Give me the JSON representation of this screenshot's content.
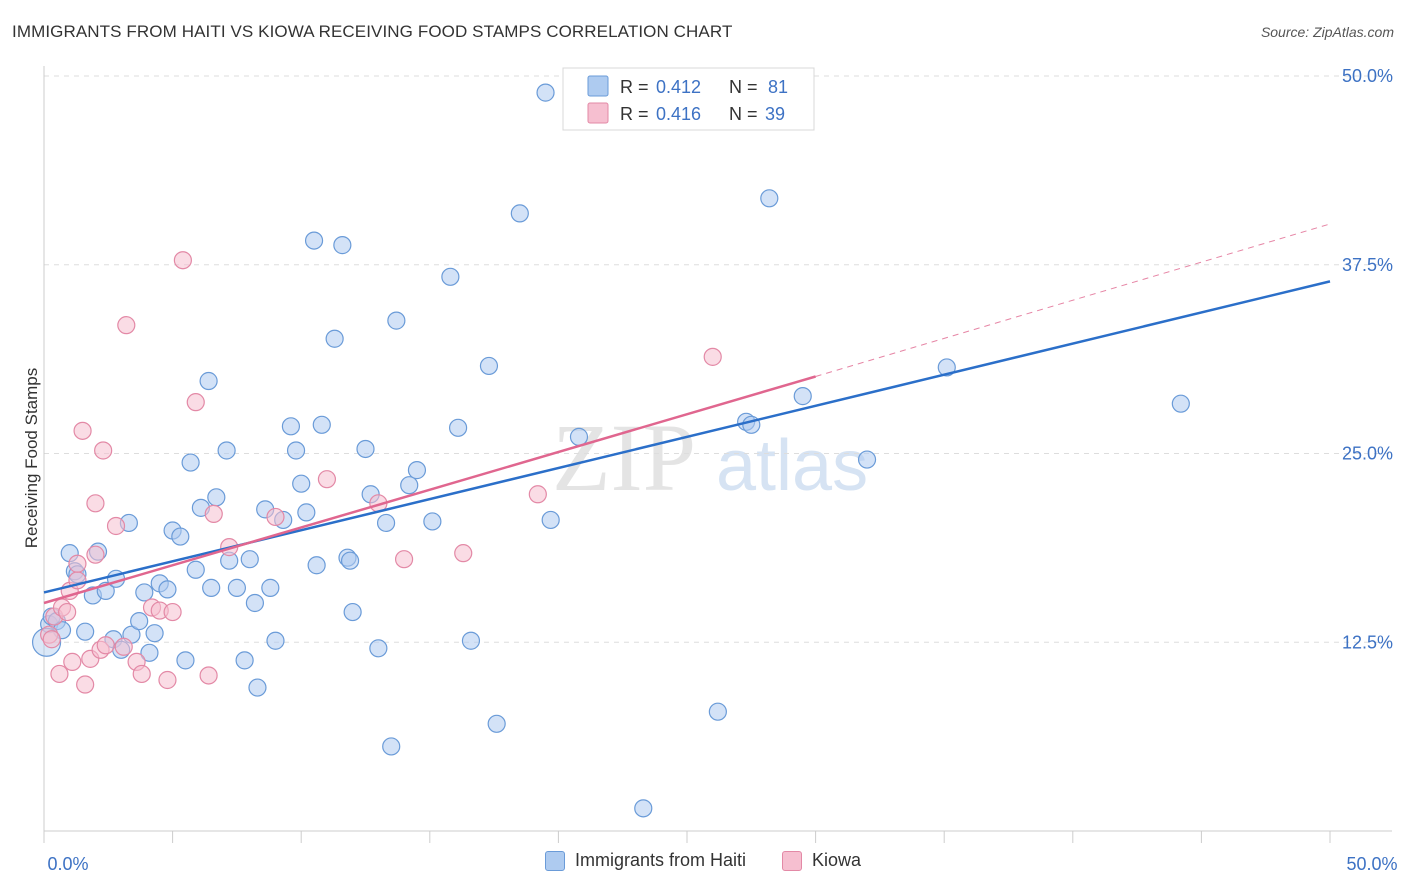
{
  "header": {
    "title": "IMMIGRANTS FROM HAITI VS KIOWA RECEIVING FOOD STAMPS CORRELATION CHART",
    "source": "Source: ZipAtlas.com"
  },
  "colors": {
    "haiti_fill": "#aecbf0",
    "haiti_stroke": "#6a9bd8",
    "haiti_line": "#2b6fc9",
    "kiowa_fill": "#f6bfd0",
    "kiowa_stroke": "#e389a6",
    "kiowa_line": "#e0668f",
    "axis_label_color": "#3d72c4",
    "grid": "#dddddd"
  },
  "stats_legend": [
    {
      "r_label": "R =",
      "r_value": "0.412",
      "n_label": "N =",
      "n_value": "81"
    },
    {
      "r_label": "R =",
      "r_value": "0.416",
      "n_label": "N =",
      "n_value": "39"
    }
  ],
  "bottom_legend": [
    "Immigrants from Haiti",
    "Kiowa"
  ],
  "watermark": {
    "zip": "ZIP",
    "atlas": "atlas"
  },
  "chart_data": {
    "type": "scatter",
    "title": "IMMIGRANTS FROM HAITI VS KIOWA RECEIVING FOOD STAMPS CORRELATION CHART",
    "xlabel": "",
    "ylabel": "Receiving Food Stamps",
    "xlim": [
      0,
      50
    ],
    "ylim": [
      0,
      50
    ],
    "x_tick_labels": [
      "0.0%",
      "50.0%"
    ],
    "y_ticks": [
      12.5,
      25.0,
      37.5,
      50.0
    ],
    "y_tick_labels": [
      "12.5%",
      "25.0%",
      "37.5%",
      "50.0%"
    ],
    "grid": "horizontal dashed",
    "legend_position": "top-center",
    "series": [
      {
        "name": "Immigrants from Haiti",
        "r": 0.412,
        "n": 81,
        "trend": {
          "x0": 0,
          "y0": 15.8,
          "x1": 50,
          "y1": 36.4
        },
        "points": [
          [
            0.2,
            13.7
          ],
          [
            0.3,
            14.2
          ],
          [
            0.5,
            13.9
          ],
          [
            0.7,
            13.3
          ],
          [
            1.0,
            18.4
          ],
          [
            1.2,
            17.2
          ],
          [
            1.3,
            17.0
          ],
          [
            1.6,
            13.2
          ],
          [
            1.9,
            15.6
          ],
          [
            2.1,
            18.5
          ],
          [
            2.4,
            15.9
          ],
          [
            2.7,
            12.7
          ],
          [
            2.8,
            16.7
          ],
          [
            3.0,
            12.0
          ],
          [
            3.3,
            20.4
          ],
          [
            3.4,
            13.0
          ],
          [
            3.7,
            13.9
          ],
          [
            3.9,
            15.8
          ],
          [
            4.1,
            11.8
          ],
          [
            4.3,
            13.1
          ],
          [
            4.5,
            16.4
          ],
          [
            4.8,
            16.0
          ],
          [
            5.0,
            19.9
          ],
          [
            5.3,
            19.5
          ],
          [
            5.5,
            11.3
          ],
          [
            5.7,
            24.4
          ],
          [
            5.9,
            17.3
          ],
          [
            6.1,
            21.4
          ],
          [
            6.4,
            29.8
          ],
          [
            6.5,
            16.1
          ],
          [
            6.7,
            22.1
          ],
          [
            7.1,
            25.2
          ],
          [
            7.2,
            17.9
          ],
          [
            7.5,
            16.1
          ],
          [
            7.8,
            11.3
          ],
          [
            8.0,
            18.0
          ],
          [
            8.2,
            15.1
          ],
          [
            8.3,
            9.5
          ],
          [
            8.6,
            21.3
          ],
          [
            8.8,
            16.1
          ],
          [
            9.0,
            12.6
          ],
          [
            9.3,
            20.6
          ],
          [
            9.6,
            26.8
          ],
          [
            9.8,
            25.2
          ],
          [
            10.0,
            23.0
          ],
          [
            10.2,
            21.1
          ],
          [
            10.6,
            17.6
          ],
          [
            10.5,
            39.1
          ],
          [
            10.8,
            26.9
          ],
          [
            11.3,
            32.6
          ],
          [
            11.6,
            38.8
          ],
          [
            11.8,
            18.1
          ],
          [
            11.9,
            17.9
          ],
          [
            12.0,
            14.5
          ],
          [
            12.5,
            25.3
          ],
          [
            12.7,
            22.3
          ],
          [
            13.0,
            12.1
          ],
          [
            13.3,
            20.4
          ],
          [
            13.5,
            5.6
          ],
          [
            13.7,
            33.8
          ],
          [
            14.2,
            22.9
          ],
          [
            14.5,
            23.9
          ],
          [
            15.1,
            20.5
          ],
          [
            15.8,
            36.7
          ],
          [
            16.1,
            26.7
          ],
          [
            16.6,
            12.6
          ],
          [
            17.3,
            30.8
          ],
          [
            17.6,
            7.1
          ],
          [
            18.5,
            40.9
          ],
          [
            19.5,
            48.9
          ],
          [
            19.7,
            20.6
          ],
          [
            20.8,
            26.1
          ],
          [
            23.3,
            1.5
          ],
          [
            26.2,
            7.9
          ],
          [
            27.3,
            27.1
          ],
          [
            27.5,
            26.9
          ],
          [
            28.2,
            41.9
          ],
          [
            29.5,
            28.8
          ],
          [
            32.0,
            24.6
          ],
          [
            35.1,
            30.7
          ],
          [
            44.2,
            28.3
          ]
        ]
      },
      {
        "name": "Kiowa",
        "r": 0.416,
        "n": 39,
        "trend": {
          "x0": 0,
          "y0": 15.1,
          "x1": 30,
          "y1": 30.1
        },
        "trend_extended": {
          "x0": 30,
          "y0": 30.1,
          "x1": 50,
          "y1": 40.2
        },
        "points": [
          [
            0.2,
            13.0
          ],
          [
            0.3,
            12.7
          ],
          [
            0.4,
            14.2
          ],
          [
            0.6,
            10.4
          ],
          [
            0.7,
            14.8
          ],
          [
            0.9,
            14.5
          ],
          [
            1.0,
            15.9
          ],
          [
            1.1,
            11.2
          ],
          [
            1.3,
            16.6
          ],
          [
            1.3,
            17.7
          ],
          [
            1.5,
            26.5
          ],
          [
            1.6,
            9.7
          ],
          [
            1.8,
            11.4
          ],
          [
            2.0,
            18.3
          ],
          [
            2.0,
            21.7
          ],
          [
            2.2,
            12.0
          ],
          [
            2.3,
            25.2
          ],
          [
            2.4,
            12.3
          ],
          [
            2.8,
            20.2
          ],
          [
            3.1,
            12.2
          ],
          [
            3.2,
            33.5
          ],
          [
            3.6,
            11.2
          ],
          [
            3.8,
            10.4
          ],
          [
            4.2,
            14.8
          ],
          [
            4.5,
            14.6
          ],
          [
            4.8,
            10.0
          ],
          [
            5.0,
            14.5
          ],
          [
            5.4,
            37.8
          ],
          [
            5.9,
            28.4
          ],
          [
            6.4,
            10.3
          ],
          [
            6.6,
            21.0
          ],
          [
            7.2,
            18.8
          ],
          [
            9.0,
            20.8
          ],
          [
            11.0,
            23.3
          ],
          [
            13.0,
            21.7
          ],
          [
            14.0,
            18.0
          ],
          [
            16.3,
            18.4
          ],
          [
            19.2,
            22.3
          ],
          [
            26.0,
            31.4
          ]
        ]
      }
    ]
  }
}
